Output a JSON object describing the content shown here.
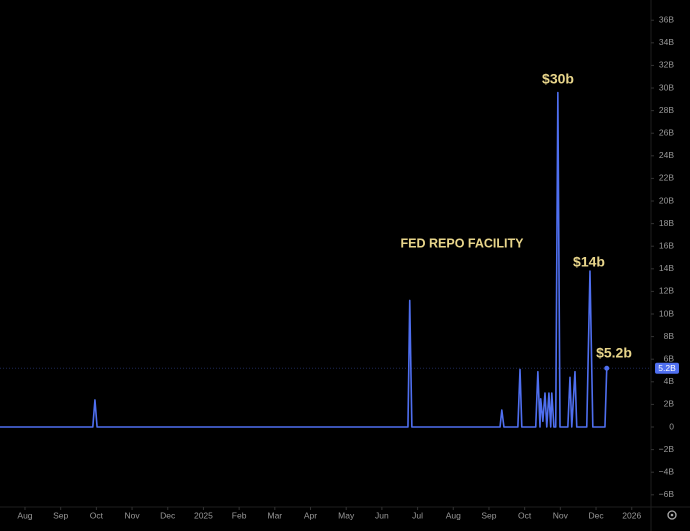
{
  "chart_data": {
    "type": "line",
    "series": [
      {
        "name": "Fed repo facility",
        "color": "#4f6ff0",
        "x": [
          -0.7,
          1.9,
          1.96,
          2.02,
          10.73,
          10.78,
          10.84,
          13.31,
          13.36,
          13.42,
          13.81,
          13.87,
          13.92,
          14.31,
          14.37,
          14.43,
          14.45,
          14.51,
          14.57,
          14.62,
          14.68,
          14.73,
          14.76,
          14.82,
          14.87,
          14.93,
          14.99,
          15.21,
          15.27,
          15.32,
          15.41,
          15.46,
          15.74,
          15.83,
          15.91,
          16.25,
          16.3
        ],
        "values": [
          0,
          0,
          2.4,
          0,
          0,
          11.2,
          0,
          0,
          1.5,
          0,
          0,
          5.1,
          0,
          0,
          4.9,
          0,
          2.5,
          0.5,
          3,
          0,
          3,
          0,
          3,
          0,
          0,
          29.6,
          0,
          0,
          4.4,
          0,
          4.9,
          0,
          0,
          13.8,
          0,
          0,
          5.2
        ]
      }
    ],
    "xlim": [
      -0.7,
      17.54
    ],
    "ylim": [
      -7.08,
      37.79
    ],
    "xticks": [
      {
        "value": 0,
        "label": "Aug"
      },
      {
        "value": 1,
        "label": "Sep"
      },
      {
        "value": 2,
        "label": "Oct"
      },
      {
        "value": 3,
        "label": "Nov"
      },
      {
        "value": 4,
        "label": "Dec"
      },
      {
        "value": 5,
        "label": "2025"
      },
      {
        "value": 6,
        "label": "Feb"
      },
      {
        "value": 7,
        "label": "Mar"
      },
      {
        "value": 8,
        "label": "Apr"
      },
      {
        "value": 9,
        "label": "May"
      },
      {
        "value": 10,
        "label": "Jun"
      },
      {
        "value": 11,
        "label": "Jul"
      },
      {
        "value": 12,
        "label": "Aug"
      },
      {
        "value": 13,
        "label": "Sep"
      },
      {
        "value": 14,
        "label": "Oct"
      },
      {
        "value": 15,
        "label": "Nov"
      },
      {
        "value": 16,
        "label": "Dec"
      },
      {
        "value": 17,
        "label": "2026"
      }
    ],
    "yticks": [
      {
        "value": 36,
        "label": "36B"
      },
      {
        "value": 34,
        "label": "34B"
      },
      {
        "value": 32,
        "label": "32B"
      },
      {
        "value": 30,
        "label": "30B"
      },
      {
        "value": 28,
        "label": "28B"
      },
      {
        "value": 26,
        "label": "26B"
      },
      {
        "value": 24,
        "label": "24B"
      },
      {
        "value": 22,
        "label": "22B"
      },
      {
        "value": 20,
        "label": "20B"
      },
      {
        "value": 18,
        "label": "18B"
      },
      {
        "value": 16,
        "label": "16B"
      },
      {
        "value": 14,
        "label": "14B"
      },
      {
        "value": 12,
        "label": "12B"
      },
      {
        "value": 10,
        "label": "10B"
      },
      {
        "value": 8,
        "label": "8B"
      },
      {
        "value": 6,
        "label": "6B"
      },
      {
        "value": 4,
        "label": "4B"
      },
      {
        "value": 2,
        "label": "2B"
      },
      0,
      {
        "value": -2,
        "label": "−2B"
      },
      {
        "value": -4,
        "label": "−4B"
      },
      {
        "value": -6,
        "label": "−6B"
      }
    ],
    "last_label": "5.2B",
    "annotations": [
      {
        "text": "FED REPO FACILITY"
      },
      {
        "text": "$30b"
      },
      {
        "text": "$14b"
      },
      {
        "text": "$5.2b"
      }
    ]
  }
}
